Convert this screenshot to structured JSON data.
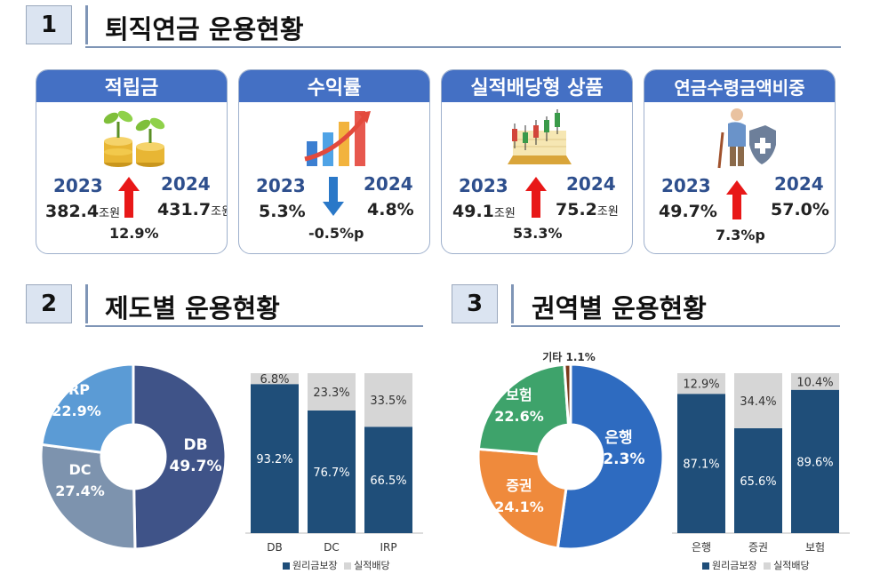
{
  "sections": {
    "s1": {
      "num": "1",
      "title": "퇴직연금 운용현황"
    },
    "s2": {
      "num": "2",
      "title": "제도별 운용현황"
    },
    "s3": {
      "num": "3",
      "title": "권역별 운용현황"
    }
  },
  "cards": [
    {
      "title": "적립금",
      "y1": "2023",
      "y2": "2024",
      "v1": "382.4",
      "u1": "조원",
      "v2": "431.7",
      "u2": "조원",
      "change": "12.9%",
      "direction": "up",
      "icon": "coin-plant-icon"
    },
    {
      "title": "수익률",
      "y1": "2023",
      "y2": "2024",
      "v1": "5.3%",
      "u1": "",
      "v2": "4.8%",
      "u2": "",
      "change": "-0.5%p",
      "direction": "down",
      "icon": "growth-bars-icon"
    },
    {
      "title": "실적배당형 상품",
      "y1": "2023",
      "y2": "2024",
      "v1": "49.1",
      "u1": "조원",
      "v2": "75.2",
      "u2": "조원",
      "change": "53.3%",
      "direction": "up",
      "icon": "candlestick-icon"
    },
    {
      "title": "연금수령금액비중",
      "y1": "2023",
      "y2": "2024",
      "v1": "49.7%",
      "u1": "",
      "v2": "57.0%",
      "u2": "",
      "change": "7.3%p",
      "direction": "up",
      "icon": "elder-shield-icon"
    }
  ],
  "colors": {
    "accent": "#4470c4",
    "up_arrow": "#e81818",
    "down_arrow": "#2a78c8",
    "principal": "#1f4e79",
    "performance": "#d6d6d6"
  },
  "chart_data": [
    {
      "type": "pie",
      "labels": [
        "DB",
        "DC",
        "IRP"
      ],
      "values": [
        49.7,
        27.4,
        22.9
      ],
      "value_labels": [
        "49.7%",
        "27.4%",
        "22.9%"
      ],
      "colors": [
        "#3f5388",
        "#7d93ae",
        "#5b9bd5"
      ]
    },
    {
      "type": "bar",
      "stacked": true,
      "categories": [
        "DB",
        "DC",
        "IRP"
      ],
      "series": [
        {
          "name": "원리금보장",
          "values": [
            93.2,
            76.7,
            66.5
          ],
          "labels": [
            "93.2%",
            "76.7%",
            "66.5%"
          ],
          "color": "#1f4e79"
        },
        {
          "name": "실적배당",
          "values": [
            6.8,
            23.3,
            33.5
          ],
          "labels": [
            "6.8%",
            "23.3%",
            "33.5%"
          ],
          "color": "#d6d6d6"
        }
      ],
      "ylim": [
        0,
        100
      ],
      "legend": "bottom"
    },
    {
      "type": "pie",
      "labels": [
        "은행",
        "증권",
        "보험",
        "기타"
      ],
      "values": [
        52.3,
        24.1,
        22.6,
        1.1
      ],
      "value_labels": [
        "52.3%",
        "24.1%",
        "22.6%",
        "1.1%"
      ],
      "colors": [
        "#2e6bc0",
        "#ef8a3c",
        "#3ea36b",
        "#7a3a1a"
      ]
    },
    {
      "type": "bar",
      "stacked": true,
      "categories": [
        "은행",
        "증권",
        "보험"
      ],
      "series": [
        {
          "name": "원리금보장",
          "values": [
            87.1,
            65.6,
            89.6
          ],
          "labels": [
            "87.1%",
            "65.6%",
            "89.6%"
          ],
          "color": "#1f4e79"
        },
        {
          "name": "실적배당",
          "values": [
            12.9,
            34.4,
            10.4
          ],
          "labels": [
            "12.9%",
            "34.4%",
            "10.4%"
          ],
          "color": "#d6d6d6"
        }
      ],
      "ylim": [
        0,
        100
      ],
      "legend": "bottom"
    }
  ]
}
